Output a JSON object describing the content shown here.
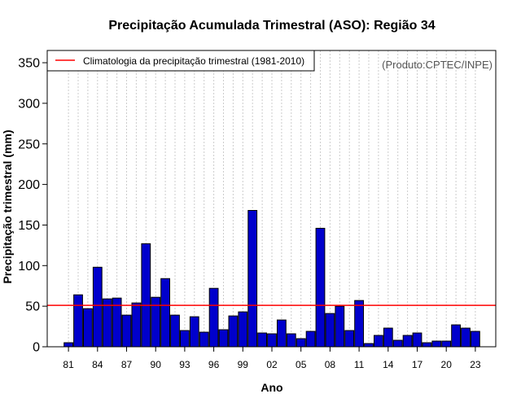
{
  "chart_data": {
    "type": "bar",
    "title": "Precipitação Acumulada Trimestral (ASO): Região 34",
    "xlabel": "Ano",
    "ylabel": "Precipitação trimestral (mm)",
    "ylim": [
      0,
      370
    ],
    "yticks": [
      0,
      50,
      100,
      150,
      200,
      250,
      300,
      350
    ],
    "credit": "(Produto:CPTEC/INPE)",
    "legend": {
      "label": "Climatologia da precipitação trimestral (1981-2010)",
      "placement": "top-left"
    },
    "climatology": {
      "value": 51,
      "color": "#ff0000"
    },
    "bar_color": "#0000cc",
    "categories": [
      1981,
      1982,
      1983,
      1984,
      1985,
      1986,
      1987,
      1988,
      1989,
      1990,
      1991,
      1992,
      1993,
      1994,
      1995,
      1996,
      1997,
      1998,
      1999,
      2000,
      2001,
      2002,
      2003,
      2004,
      2005,
      2006,
      2007,
      2008,
      2009,
      2010,
      2011,
      2012,
      2013,
      2014,
      2015,
      2016,
      2017,
      2018,
      2019,
      2020,
      2021,
      2022,
      2023
    ],
    "x_tick_labels": [
      "81",
      "84",
      "87",
      "90",
      "93",
      "96",
      "99",
      "02",
      "05",
      "08",
      "11",
      "14",
      "17",
      "20",
      "23"
    ],
    "values": [
      5,
      64,
      47,
      98,
      59,
      60,
      39,
      54,
      127,
      61,
      84,
      39,
      20,
      37,
      18,
      72,
      21,
      38,
      43,
      168,
      17,
      16,
      33,
      16,
      10,
      19,
      146,
      41,
      50,
      20,
      57,
      4,
      14,
      23,
      8,
      14,
      17,
      5,
      7,
      7,
      27,
      23,
      19
    ]
  }
}
